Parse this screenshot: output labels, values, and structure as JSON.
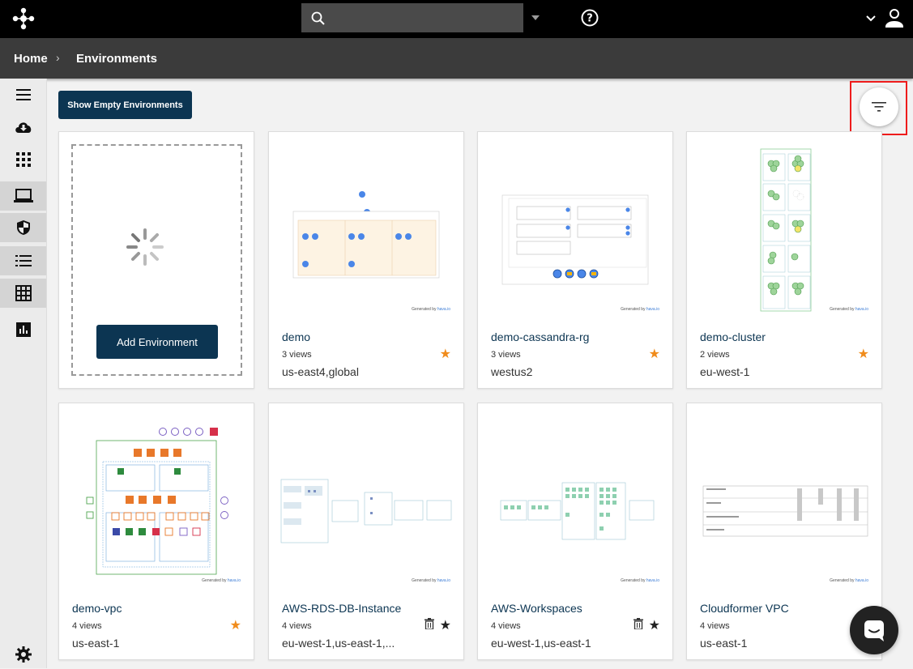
{
  "breadcrumb": {
    "home": "Home",
    "separator": "›",
    "current": "Environments"
  },
  "toolbar": {
    "show_empty_label": "Show Empty Environments"
  },
  "add_card": {
    "button_label": "Add Environment"
  },
  "thumbnail_footer": {
    "prefix": "Generated by",
    "brand": "hava.io"
  },
  "cards": [
    {
      "name": "demo",
      "views": "3 views",
      "region": "us-east4,global",
      "starred": true,
      "trash": false
    },
    {
      "name": "demo-cassandra-rg",
      "views": "3 views",
      "region": "westus2",
      "starred": true,
      "trash": false
    },
    {
      "name": "demo-cluster",
      "views": "2 views",
      "region": "eu-west-1",
      "starred": true,
      "trash": false
    },
    {
      "name": "demo-vpc",
      "views": "4 views",
      "region": "us-east-1",
      "starred": true,
      "trash": false
    },
    {
      "name": "AWS-RDS-DB-Instance",
      "views": "4 views",
      "region": "eu-west-1,us-east-1,...",
      "starred": false,
      "trash": true
    },
    {
      "name": "AWS-Workspaces",
      "views": "4 views",
      "region": "eu-west-1,us-east-1",
      "starred": false,
      "trash": true
    },
    {
      "name": "Cloudformer VPC",
      "views": "4 views",
      "region": "us-east-1",
      "starred": false,
      "trash": false
    }
  ],
  "icons": {
    "logo": "hava-logo-icon",
    "search": "search-icon",
    "help": "help-circle-icon",
    "account_menu": "chevron-down-icon",
    "user": "user-icon",
    "filter": "filter-icon",
    "chat": "chat-icon",
    "starred_star": "star-icon",
    "trash": "trash-icon",
    "sidebar": [
      "menu-icon",
      "cloud-download-icon",
      "apps-grid-icon",
      "laptop-icon",
      "shield-icon",
      "list-icon",
      "table-grid-icon",
      "bar-chart-icon",
      "settings-gear-icon"
    ]
  },
  "colors": {
    "accent": "#0c3552",
    "star_active": "#f08c1c",
    "star_inactive": "#222222",
    "highlight": "#ee1c1c"
  }
}
